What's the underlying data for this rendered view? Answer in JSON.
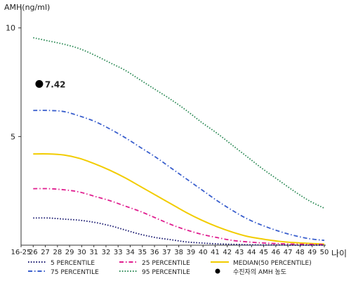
{
  "chart_data": {
    "type": "line",
    "ylabel": "AMH(ng/ml)",
    "xlabel": "나이",
    "ylim": [
      0,
      10.8
    ],
    "y_ticks": [
      5,
      10
    ],
    "x_tick_labels": [
      "16-25",
      "26",
      "27",
      "28",
      "29",
      "30",
      "31",
      "32",
      "33",
      "34",
      "35",
      "36",
      "37",
      "38",
      "39",
      "40",
      "41",
      "42",
      "43",
      "44",
      "45",
      "46",
      "47",
      "48",
      "49",
      "50"
    ],
    "grid": false,
    "legend_position": "bottom",
    "series": [
      {
        "name": "95 PERCENTILE",
        "color": "#2e8b57",
        "style": "dot",
        "values": [
          9.55,
          9.4,
          9.25,
          9.05,
          8.75,
          8.4,
          8.05,
          7.6,
          7.15,
          6.7,
          6.2,
          5.65,
          5.15,
          4.6,
          4.05,
          3.5,
          3.0,
          2.5,
          2.05,
          1.7
        ]
      },
      {
        "name": "75 PERCENTILE",
        "color": "#3a5fcd",
        "style": "dashdot",
        "values": [
          6.2,
          6.2,
          6.15,
          5.95,
          5.7,
          5.35,
          4.95,
          4.5,
          4.05,
          3.55,
          3.05,
          2.55,
          2.05,
          1.6,
          1.2,
          0.9,
          0.65,
          0.45,
          0.3,
          0.22
        ]
      },
      {
        "name": "MEDIAN(50 PERCENTILE)",
        "color": "#f2cc00",
        "style": "solid",
        "values": [
          4.2,
          4.2,
          4.15,
          4.0,
          3.75,
          3.45,
          3.1,
          2.7,
          2.3,
          1.9,
          1.5,
          1.15,
          0.85,
          0.6,
          0.4,
          0.28,
          0.18,
          0.12,
          0.08,
          0.05
        ]
      },
      {
        "name": "25 PERCENTILE",
        "color": "#e01e8f",
        "style": "dashdot",
        "values": [
          2.6,
          2.6,
          2.55,
          2.45,
          2.25,
          2.05,
          1.8,
          1.55,
          1.25,
          0.95,
          0.7,
          0.5,
          0.35,
          0.22,
          0.15,
          0.1,
          0.07,
          0.05,
          0.04,
          0.03
        ]
      },
      {
        "name": "5 PERCENTILE",
        "color": "#1a1a70",
        "style": "dot",
        "values": [
          1.25,
          1.25,
          1.2,
          1.15,
          1.05,
          0.9,
          0.7,
          0.5,
          0.35,
          0.25,
          0.15,
          0.1,
          0.06,
          0.04,
          0.02,
          0.01,
          0.01,
          0.0,
          0.0,
          0.0
        ]
      }
    ],
    "series_x": [
      0,
      1,
      2,
      3,
      4,
      5,
      6,
      7,
      8,
      9,
      10,
      11,
      12,
      13,
      14,
      15,
      16,
      17,
      18,
      19
    ],
    "series_x_start_index": 1,
    "marker": {
      "name": "수진자의 AMH 농도",
      "label": "7.42",
      "value": 7.42,
      "x_index": 1.5,
      "color": "#000000"
    },
    "legend": [
      {
        "name": "5 PERCENTILE",
        "color": "#1a1a70",
        "style": "dot"
      },
      {
        "name": "25 PERCENTILE",
        "color": "#e01e8f",
        "style": "dashdot"
      },
      {
        "name": "MEDIAN(50 PERCENTILE)",
        "color": "#f2cc00",
        "style": "solid"
      },
      {
        "name": "75 PERCENTILE",
        "color": "#3a5fcd",
        "style": "dashdot"
      },
      {
        "name": "95 PERCENTILE",
        "color": "#2e8b57",
        "style": "dot"
      },
      {
        "name": "수진자의 AMH 농도",
        "color": "#000000",
        "style": "marker"
      }
    ]
  }
}
